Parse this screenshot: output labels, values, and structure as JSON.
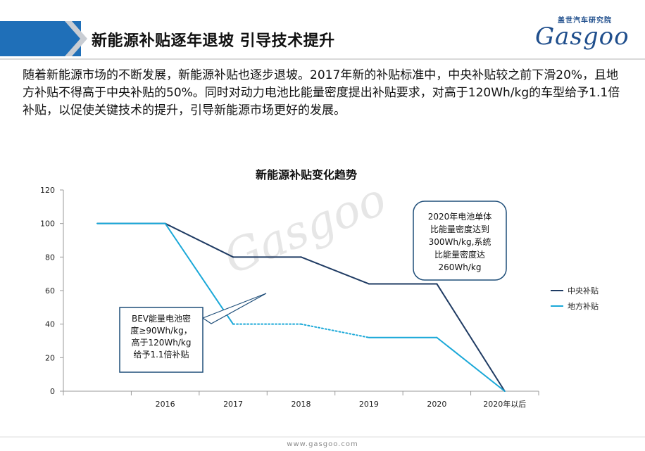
{
  "header": {
    "title": "新能源补贴逐年退坡 引导技术提升",
    "logo_cn": "盖世汽车研究院",
    "logo_en": "Gasgoo"
  },
  "intro_text": "随着新能源市场的不断发展，新能源补贴也逐步退坡。2017年新的补贴标准中，中央补贴较之前下滑20%，且地方补贴不得高于中央补贴的50%。同时对动力电池比能量密度提出补贴要求，对高于120Wh/kg的车型给予1.1倍补贴，以促使关键技术的提升，引导新能源市场更好的发展。",
  "chart_data": {
    "type": "line",
    "title": "新能源补贴变化趋势",
    "categories": [
      "",
      "2016",
      "2017",
      "2018",
      "2019",
      "2020",
      "2020年以后"
    ],
    "series": [
      {
        "name": "中央补贴",
        "color": "#1f3b63",
        "values": [
          100,
          100,
          80,
          80,
          64,
          64,
          0
        ]
      },
      {
        "name": "地方补贴",
        "color": "#1aa8d8",
        "values": [
          100,
          100,
          40,
          40,
          32,
          32,
          0
        ]
      }
    ],
    "ylim": [
      0,
      120
    ],
    "yticks": [
      0,
      20,
      40,
      60,
      80,
      100,
      120
    ],
    "grid": false,
    "legend_position": "right",
    "annotations": [
      "BEV能量电池密度≥90Wh/kg，高于120Wh/kg给予1.1倍补贴",
      "2020年电池单体比能量密度达到300Wh/kg,系统比能量密度达260Wh/kg"
    ],
    "watermark": "Gasgoo"
  },
  "footer": {
    "url": "www.gasgoo.com"
  },
  "colors": {
    "brand_blue": "#1f6fb8",
    "logo_navy": "#1f4e8c",
    "annotation_border": "#1f4e79"
  }
}
